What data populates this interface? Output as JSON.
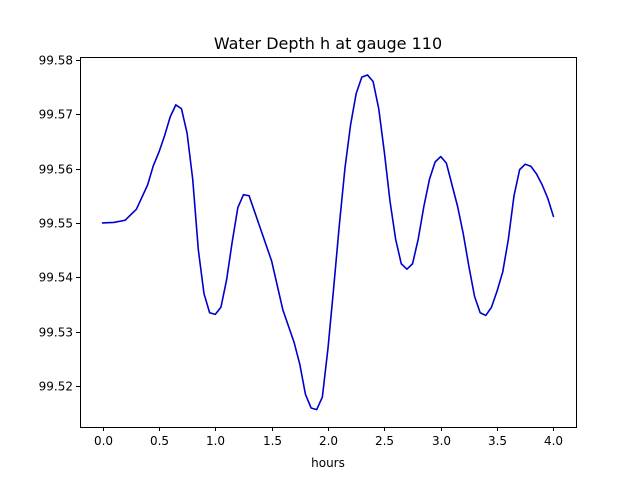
{
  "chart_data": {
    "type": "line",
    "title": "Water Depth h at gauge 110",
    "xlabel": "hours",
    "ylabel": "",
    "xlim": [
      -0.2,
      4.2
    ],
    "ylim": [
      99.5125,
      99.5805
    ],
    "x_ticks": [
      0.0,
      0.5,
      1.0,
      1.5,
      2.0,
      2.5,
      3.0,
      3.5,
      4.0
    ],
    "x_tick_labels": [
      "0.0",
      "0.5",
      "1.0",
      "1.5",
      "2.0",
      "2.5",
      "3.0",
      "3.5",
      "4.0"
    ],
    "y_ticks": [
      99.52,
      99.53,
      99.54,
      99.55,
      99.56,
      99.57,
      99.58
    ],
    "y_tick_labels": [
      "99.52",
      "99.53",
      "99.54",
      "99.55",
      "99.56",
      "99.57",
      "99.58"
    ],
    "grid": false,
    "series": [
      {
        "color": "#0000cc",
        "x": [
          0.0,
          0.1,
          0.2,
          0.3,
          0.4,
          0.45,
          0.5,
          0.55,
          0.6,
          0.65,
          0.7,
          0.75,
          0.8,
          0.85,
          0.9,
          0.95,
          1.0,
          1.05,
          1.1,
          1.15,
          1.2,
          1.25,
          1.3,
          1.35,
          1.4,
          1.5,
          1.6,
          1.7,
          1.75,
          1.8,
          1.85,
          1.9,
          1.95,
          2.0,
          2.05,
          2.1,
          2.15,
          2.2,
          2.25,
          2.3,
          2.35,
          2.4,
          2.45,
          2.5,
          2.55,
          2.6,
          2.65,
          2.7,
          2.75,
          2.8,
          2.85,
          2.9,
          2.95,
          3.0,
          3.05,
          3.1,
          3.15,
          3.2,
          3.25,
          3.3,
          3.35,
          3.4,
          3.45,
          3.5,
          3.55,
          3.6,
          3.65,
          3.7,
          3.75,
          3.8,
          3.85,
          3.9,
          3.95,
          4.0
        ],
        "y": [
          99.55,
          99.5501,
          99.5505,
          99.5525,
          99.557,
          99.5605,
          99.563,
          99.566,
          99.5695,
          99.5717,
          99.571,
          99.5665,
          99.558,
          99.545,
          99.537,
          99.5335,
          99.5332,
          99.5345,
          99.5395,
          99.5465,
          99.5528,
          99.5552,
          99.555,
          99.552,
          99.549,
          99.543,
          99.534,
          99.528,
          99.524,
          99.5185,
          99.516,
          99.5157,
          99.518,
          99.527,
          99.538,
          99.5495,
          99.56,
          99.568,
          99.5738,
          99.5768,
          99.5772,
          99.576,
          99.571,
          99.563,
          99.554,
          99.547,
          99.5425,
          99.5415,
          99.5425,
          99.547,
          99.553,
          99.558,
          99.5612,
          99.5622,
          99.561,
          99.557,
          99.553,
          99.548,
          99.542,
          99.5365,
          99.5335,
          99.533,
          99.5345,
          99.5375,
          99.541,
          99.547,
          99.555,
          99.5598,
          99.5608,
          99.5604,
          99.559,
          99.557,
          99.5545,
          99.5512
        ]
      }
    ]
  }
}
